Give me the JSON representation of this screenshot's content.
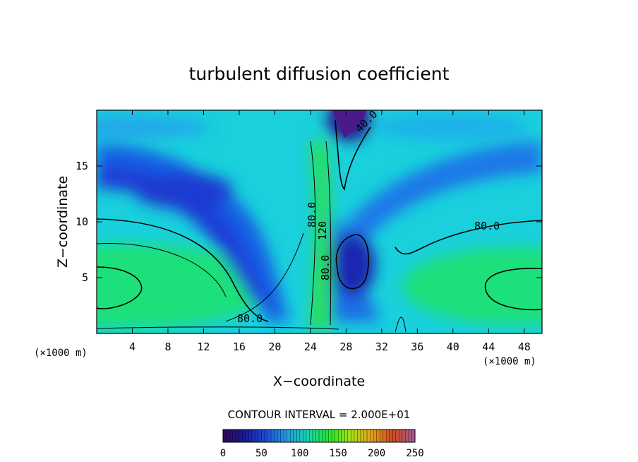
{
  "chart_data": {
    "type": "heatmap",
    "title": "turbulent diffusion coefficient",
    "xlabel": "X−coordinate",
    "ylabel": "Z−coordinate",
    "x_unit_left": "(×1000 m)",
    "x_unit_right": "(×1000 m)",
    "xlim": [
      0,
      50
    ],
    "ylim": [
      0,
      20
    ],
    "xticks": [
      4,
      8,
      12,
      16,
      20,
      24,
      28,
      32,
      36,
      40,
      44,
      48
    ],
    "yticks": [
      5,
      10,
      15
    ],
    "contour_interval_text": "CONTOUR INTERVAL = 2.000E+01",
    "contour_labels": [
      "40.0",
      "80.0",
      "80.0",
      "120",
      "80.0",
      "80.0"
    ],
    "colorbar": {
      "min": 0,
      "max": 250,
      "ticks": [
        "0",
        "50",
        "100",
        "150",
        "200",
        "250"
      ],
      "colors": [
        "#2a0a5e",
        "#1a1a9a",
        "#1f4fd6",
        "#1ea0e6",
        "#19d6a8",
        "#22e82a",
        "#a8e21a",
        "#e6a21a",
        "#d04a22",
        "#a85a8a"
      ]
    },
    "field_features": [
      {
        "kind": "minimum",
        "x": 29,
        "z": 19,
        "value": 5
      },
      {
        "kind": "minimum",
        "x": 29.5,
        "z": 6,
        "value": 45
      },
      {
        "kind": "minimum",
        "x": 12,
        "z": 14,
        "value": 55
      },
      {
        "kind": "maximum",
        "x": 3,
        "z": 4.5,
        "value": 160
      },
      {
        "kind": "maximum",
        "x": 47,
        "z": 4,
        "value": 160
      },
      {
        "kind": "maximum",
        "x": 26,
        "z": 5,
        "value": 160
      }
    ]
  }
}
